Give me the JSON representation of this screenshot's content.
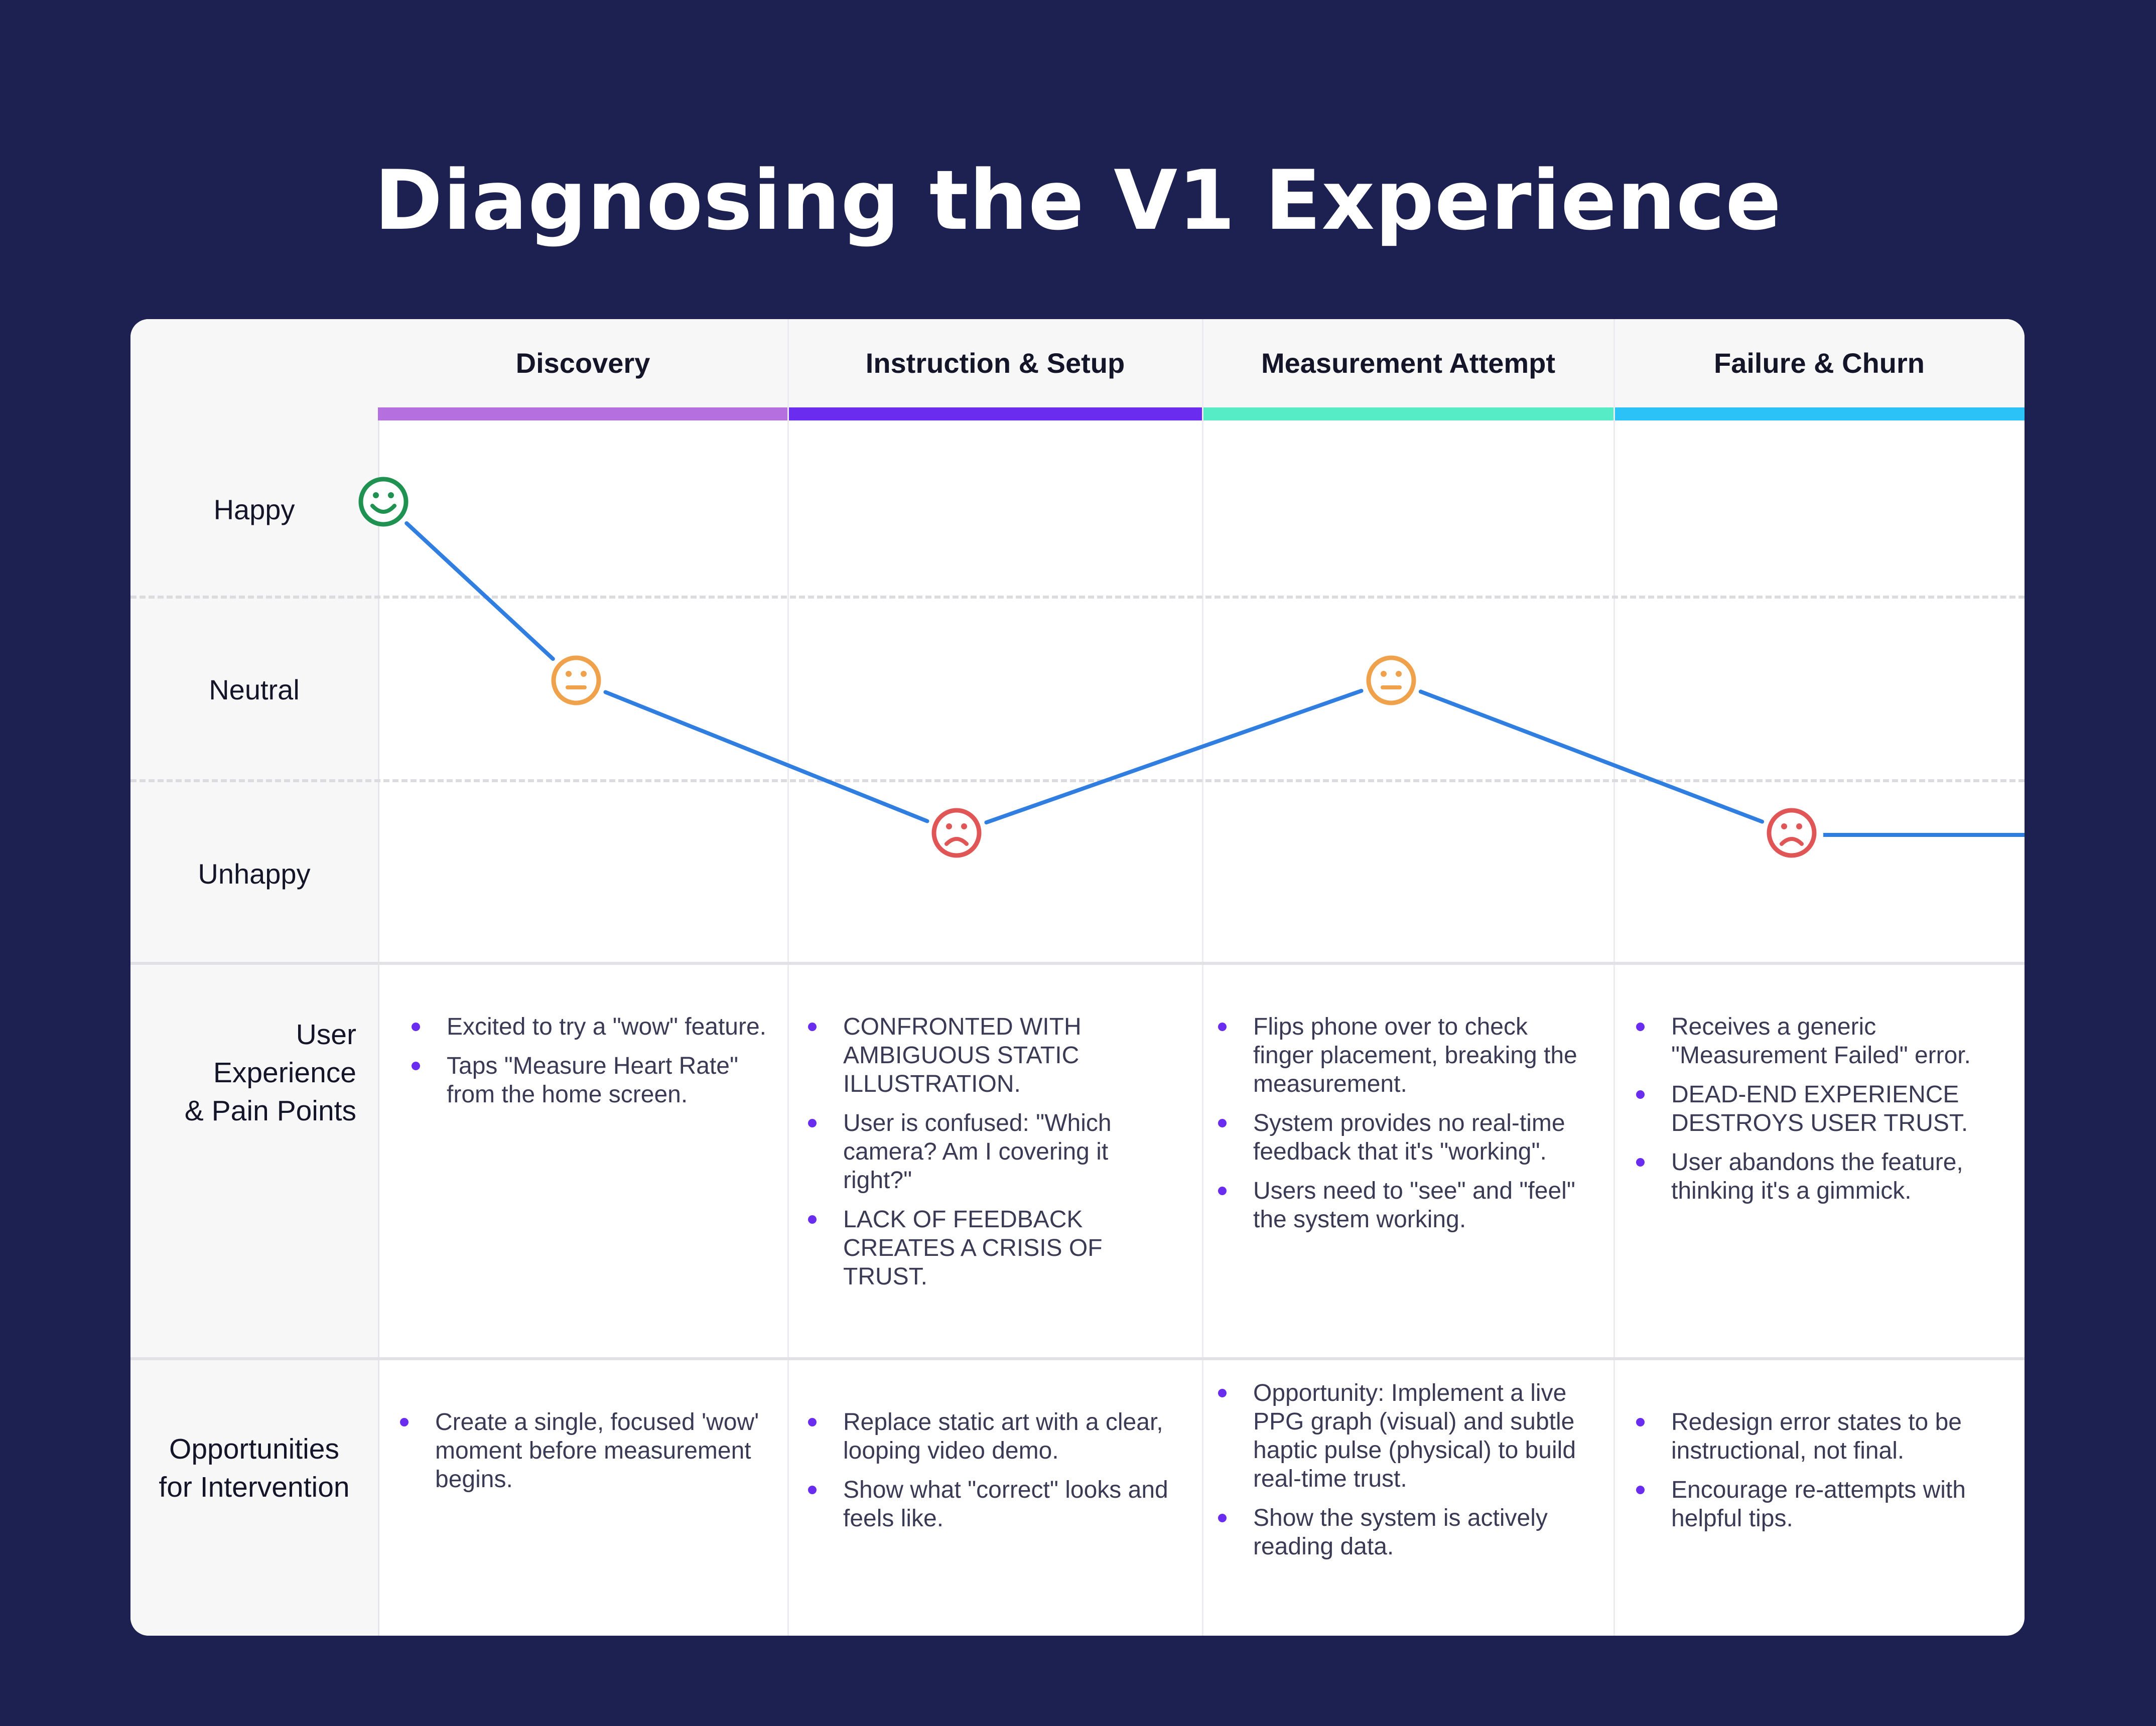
{
  "title": "Diagnosing the V1 Experience",
  "stages": [
    {
      "label": "Discovery",
      "color": "#b56fdf"
    },
    {
      "label": "Instruction & Setup",
      "color": "#6a2df0"
    },
    {
      "label": "Measurement Attempt",
      "color": "#56ecc5"
    },
    {
      "label": "Failure & Churn",
      "color": "#2bc3f7"
    }
  ],
  "emotions": {
    "happy": "Happy",
    "neutral": "Neutral",
    "unhappy": "Unhappy"
  },
  "journey": {
    "points": [
      {
        "stage": "Discovery",
        "emotion": "happy",
        "icon": "happy-face-icon"
      },
      {
        "stage": "Discovery",
        "emotion": "neutral",
        "icon": "neutral-face-icon"
      },
      {
        "stage": "Instruction & Setup",
        "emotion": "unhappy",
        "icon": "sad-face-icon"
      },
      {
        "stage": "Measurement Attempt",
        "emotion": "neutral",
        "icon": "neutral-face-icon"
      },
      {
        "stage": "Failure & Churn",
        "emotion": "unhappy",
        "icon": "sad-face-icon"
      }
    ],
    "line_color": "#2f7ee0",
    "colors": {
      "happy": "#1f9150",
      "neutral": "#f0a14c",
      "unhappy": "#e05656"
    }
  },
  "rows": {
    "experience_label": [
      "User",
      "Experience",
      "& Pain Points"
    ],
    "opportunity_label": [
      "Opportunities",
      "for Intervention"
    ]
  },
  "experience": [
    [
      "Excited to try a \"wow\" feature.",
      "Taps \"Measure Heart Rate\" from the home screen."
    ],
    [
      "CONFRONTED WITH AMBIGUOUS STATIC ILLUSTRATION.",
      "User is confused: \"Which camera? Am I covering it right?\"",
      "LACK OF FEEDBACK CREATES A CRISIS OF TRUST."
    ],
    [
      "Flips phone over to check finger placement, breaking the measurement.",
      "System provides no real-time feedback that it's \"working\".",
      "Users need to \"see\" and \"feel\" the system working."
    ],
    [
      "Receives a generic \"Measurement Failed\" error.",
      "DEAD-END EXPERIENCE DESTROYS USER TRUST.",
      "User abandons the feature, thinking it's a gimmick."
    ]
  ],
  "opportunities": [
    [
      "Create a single, focused 'wow' moment before measurement begins."
    ],
    [
      "Replace static art with a clear, looping video demo.",
      "Show what \"correct\" looks and feels like."
    ],
    [
      "Opportunity: Implement a live PPG graph (visual) and subtle haptic pulse (physical) to build real-time trust.",
      "Show the system is actively reading data."
    ],
    [
      "Redesign error states to be instructional, not final.",
      "Encourage re-attempts with helpful tips."
    ]
  ]
}
